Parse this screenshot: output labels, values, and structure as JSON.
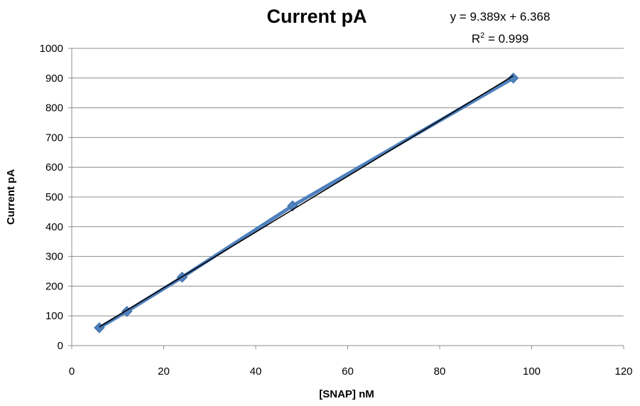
{
  "chart_data": {
    "type": "scatter",
    "title": "Current pA",
    "xlabel": "[SNAP] nM",
    "ylabel": "Current pA",
    "xlim": [
      0,
      120
    ],
    "ylim": [
      0,
      1000
    ],
    "x_ticks": [
      "0",
      "20",
      "40",
      "60",
      "80",
      "100",
      "120"
    ],
    "y_ticks": [
      "0",
      "100",
      "200",
      "300",
      "400",
      "500",
      "600",
      "700",
      "800",
      "900",
      "1000"
    ],
    "grid": true,
    "legend": "none",
    "series": [
      {
        "x": [
          6,
          12,
          24,
          48,
          96
        ],
        "y": [
          60,
          115,
          230,
          470,
          900
        ],
        "color": "#4f81bd",
        "marker": "diamond",
        "connected": true
      }
    ],
    "trendline": {
      "type": "linear",
      "slope": 9.389,
      "intercept": 6.368,
      "x_range": [
        6,
        96
      ],
      "color": "#000000",
      "equation": "y = 9.389x + 6.368",
      "r2_prefix": "R",
      "r2_sup": "2",
      "r2_suffix": " = 0.999"
    }
  }
}
